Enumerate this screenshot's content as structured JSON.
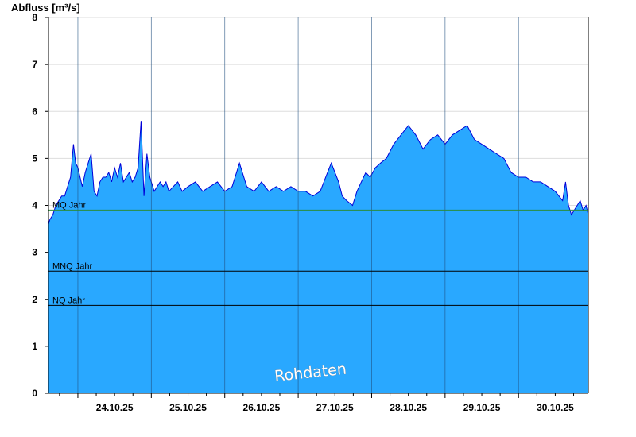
{
  "chart_data": {
    "type": "area",
    "title": "",
    "ylabel": "Abfluss [m³/s]",
    "xlabel": "",
    "ylim": [
      0,
      8
    ],
    "yticks": [
      "0",
      "1",
      "2",
      "3",
      "4",
      "5",
      "6",
      "7",
      "8"
    ],
    "x_range_days": [
      23.6,
      30.95
    ],
    "day_boundaries": [
      24,
      25,
      26,
      27,
      28,
      29,
      30
    ],
    "xtick_labels": [
      "24.10.25",
      "25.10.25",
      "26.10.25",
      "27.10.25",
      "28.10.25",
      "29.10.25",
      "30.10.25"
    ],
    "grid": "horizontal-light",
    "colors": {
      "fill": "#29a8ff",
      "line": "#0000d8",
      "mq_line": "#2b8c3c",
      "ref_line": "#000000",
      "grid": "#dddddd"
    },
    "reference_lines": [
      {
        "label": "MQ Jahr",
        "value": 3.9
      },
      {
        "label": "MNQ Jahr",
        "value": 2.6
      },
      {
        "label": "NQ Jahr",
        "value": 1.87
      }
    ],
    "watermark": "Rohdaten",
    "series": [
      {
        "x_day": [
          23.6,
          23.62,
          23.66,
          23.7,
          23.74,
          23.78,
          23.82,
          23.86,
          23.9,
          23.94,
          23.97,
          24.0,
          24.03,
          24.06,
          24.1,
          24.14,
          24.18,
          24.22,
          24.26,
          24.3,
          24.34,
          24.38,
          24.42,
          24.46,
          24.5,
          24.54,
          24.58,
          24.62,
          24.66,
          24.7,
          24.74,
          24.78,
          24.82,
          24.86,
          24.9,
          24.94,
          24.98,
          25.0,
          25.04,
          25.08,
          25.12,
          25.16,
          25.2,
          25.24,
          25.3,
          25.36,
          25.42,
          25.5,
          25.6,
          25.7,
          25.8,
          25.9,
          26.0,
          26.1,
          26.2,
          26.3,
          26.4,
          26.5,
          26.6,
          26.7,
          26.8,
          26.9,
          27.0,
          27.1,
          27.2,
          27.3,
          27.35,
          27.4,
          27.45,
          27.5,
          27.55,
          27.6,
          27.66,
          27.74,
          27.8,
          27.86,
          27.92,
          27.98,
          28.05,
          28.12,
          28.2,
          28.3,
          28.4,
          28.5,
          28.6,
          28.7,
          28.8,
          28.9,
          29.0,
          29.1,
          29.2,
          29.3,
          29.4,
          29.5,
          29.6,
          29.7,
          29.8,
          29.9,
          30.0,
          30.1,
          30.2,
          30.3,
          30.4,
          30.5,
          30.6,
          30.64,
          30.68,
          30.72,
          30.76,
          30.8,
          30.84,
          30.88,
          30.92,
          30.95
        ],
        "y": [
          3.6,
          3.7,
          3.8,
          4.0,
          4.1,
          4.2,
          4.2,
          4.4,
          4.6,
          5.3,
          4.9,
          4.8,
          4.6,
          4.4,
          4.7,
          4.9,
          5.1,
          4.3,
          4.2,
          4.5,
          4.6,
          4.6,
          4.7,
          4.5,
          4.8,
          4.6,
          4.9,
          4.5,
          4.6,
          4.7,
          4.5,
          4.6,
          4.8,
          5.8,
          4.2,
          5.1,
          4.6,
          4.5,
          4.3,
          4.4,
          4.5,
          4.4,
          4.5,
          4.3,
          4.4,
          4.5,
          4.3,
          4.4,
          4.5,
          4.3,
          4.4,
          4.5,
          4.3,
          4.4,
          4.9,
          4.4,
          4.3,
          4.5,
          4.3,
          4.4,
          4.3,
          4.4,
          4.3,
          4.3,
          4.2,
          4.3,
          4.5,
          4.7,
          4.9,
          4.7,
          4.5,
          4.2,
          4.1,
          4.0,
          4.3,
          4.5,
          4.7,
          4.6,
          4.8,
          4.9,
          5.0,
          5.3,
          5.5,
          5.7,
          5.5,
          5.2,
          5.4,
          5.5,
          5.3,
          5.5,
          5.6,
          5.7,
          5.4,
          5.3,
          5.2,
          5.1,
          5.0,
          4.7,
          4.6,
          4.6,
          4.5,
          4.5,
          4.4,
          4.3,
          4.1,
          4.5,
          4.0,
          3.8,
          3.9,
          4.0,
          4.1,
          3.9,
          4.0,
          3.8
        ]
      }
    ]
  }
}
